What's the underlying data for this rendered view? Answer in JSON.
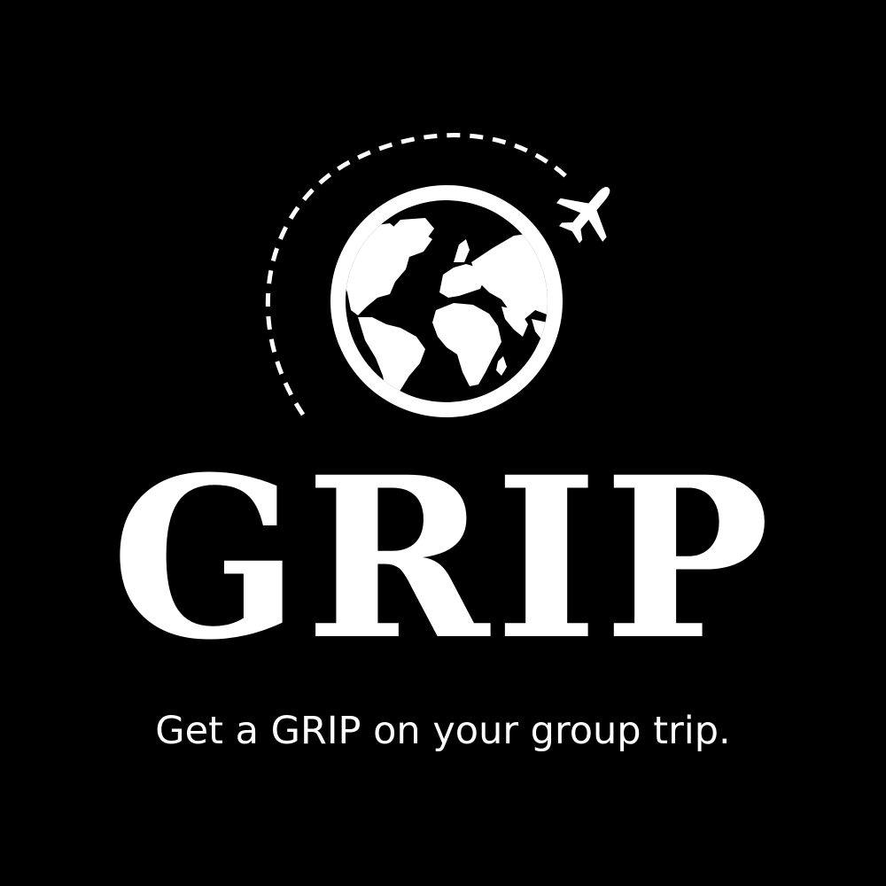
{
  "brand": {
    "name": "GRIP",
    "tagline": "Get a GRIP on your group trip."
  },
  "icons": {
    "globe": "globe-icon",
    "airplane": "airplane-icon",
    "flight_path": "dashed-flight-path"
  },
  "colors": {
    "background": "#000000",
    "foreground": "#ffffff"
  }
}
